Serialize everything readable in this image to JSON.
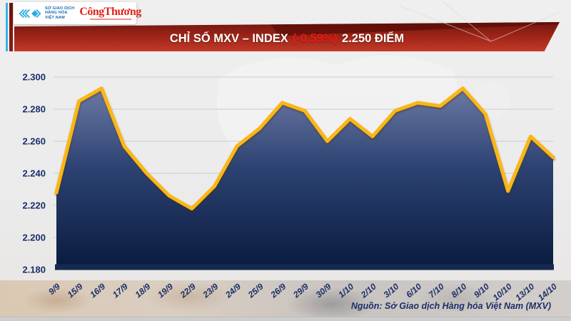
{
  "masthead": {
    "exchange_name_lines": [
      "SỞ GIAO DỊCH",
      "HÀNG HÓA",
      "VIỆT NAM"
    ],
    "newspaper_name": "CôngThương"
  },
  "banner": {
    "title": "CHỈ SỐ MXV – INDEX",
    "change": "(-0,59%)",
    "points": "2.250 ĐIỂM",
    "change_color": "#e81a15"
  },
  "chart_data": {
    "type": "area",
    "title": "CHỈ SỐ MXV – INDEX",
    "categories": [
      "9/9",
      "15/9",
      "16/9",
      "17/9",
      "18/9",
      "19/9",
      "22/9",
      "23/9",
      "24/9",
      "25/9",
      "26/9",
      "29/9",
      "30/9",
      "1/10",
      "2/10",
      "3/10",
      "6/10",
      "7/10",
      "8/10",
      "9/10",
      "10/10",
      "13/10",
      "14/10"
    ],
    "values": [
      2228,
      2285,
      2293,
      2257,
      2240,
      2226,
      2218,
      2232,
      2257,
      2268,
      2284,
      2279,
      2260,
      2274,
      2263,
      2279,
      2284,
      2282,
      2293,
      2277,
      2229,
      2263,
      2250
    ],
    "xlabel": "",
    "ylabel": "",
    "ylim": [
      2180,
      2300
    ],
    "ytick_values": [
      2300,
      2280,
      2260,
      2240,
      2220,
      2200,
      2180
    ],
    "ytick_labels": [
      "2.300",
      "2.280",
      "2.260",
      "2.240",
      "2.220",
      "2.200",
      "2.180"
    ],
    "grid": true,
    "legend": "none",
    "line_color": "#FBB615",
    "area_gradient_top": "#6c7a a4",
    "area_gradient_mid": "#2c4272",
    "area_gradient_bottom": "#0a1c40",
    "axis_bar_color": "#16294f",
    "label_color": "#1b2f66",
    "source": "Nguồn: Sở Giao dịch Hàng hóa Việt Nam (MXV)"
  }
}
